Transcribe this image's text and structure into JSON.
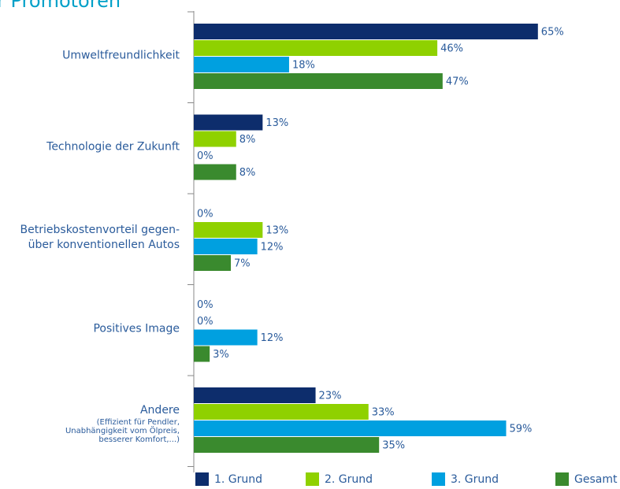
{
  "chart_data": {
    "type": "bar",
    "orientation": "horizontal",
    "title": "r Promotoren",
    "categories": [
      "Umweltfreundlichkeit",
      "Technologie der Zukunft",
      "Betriebskostenvorteil gegen-\nüber konventionellen Autos",
      "Positives Image",
      "Andere"
    ],
    "annotation": "(Effizient für Pendler,\nUnabhängigkeit vom Ölpreis,\nbesserer Komfort,...)",
    "series": [
      {
        "name": "1. Grund",
        "color": "#0d2d6c",
        "values": [
          65,
          13,
          0,
          0,
          23
        ],
        "value_labels": [
          "65%",
          "13%",
          "0%",
          "0%",
          "23%"
        ]
      },
      {
        "name": "2. Grund",
        "color": "#8fd100",
        "values": [
          46,
          8,
          13,
          0,
          33
        ],
        "value_labels": [
          "46%",
          "8%",
          "13%",
          "0%",
          "33%"
        ]
      },
      {
        "name": "3. Grund",
        "color": "#00a0e0",
        "values": [
          18,
          0,
          12,
          12,
          59
        ],
        "value_labels": [
          "18%",
          "0%",
          "12%",
          "12%",
          "59%"
        ]
      },
      {
        "name": "Gesamt",
        "color": "#3a8a2e",
        "values": [
          47,
          8,
          7,
          3,
          35
        ],
        "value_labels": [
          "47%",
          "8%",
          "7%",
          "3%",
          "35%"
        ]
      }
    ],
    "legend": "bottom"
  }
}
